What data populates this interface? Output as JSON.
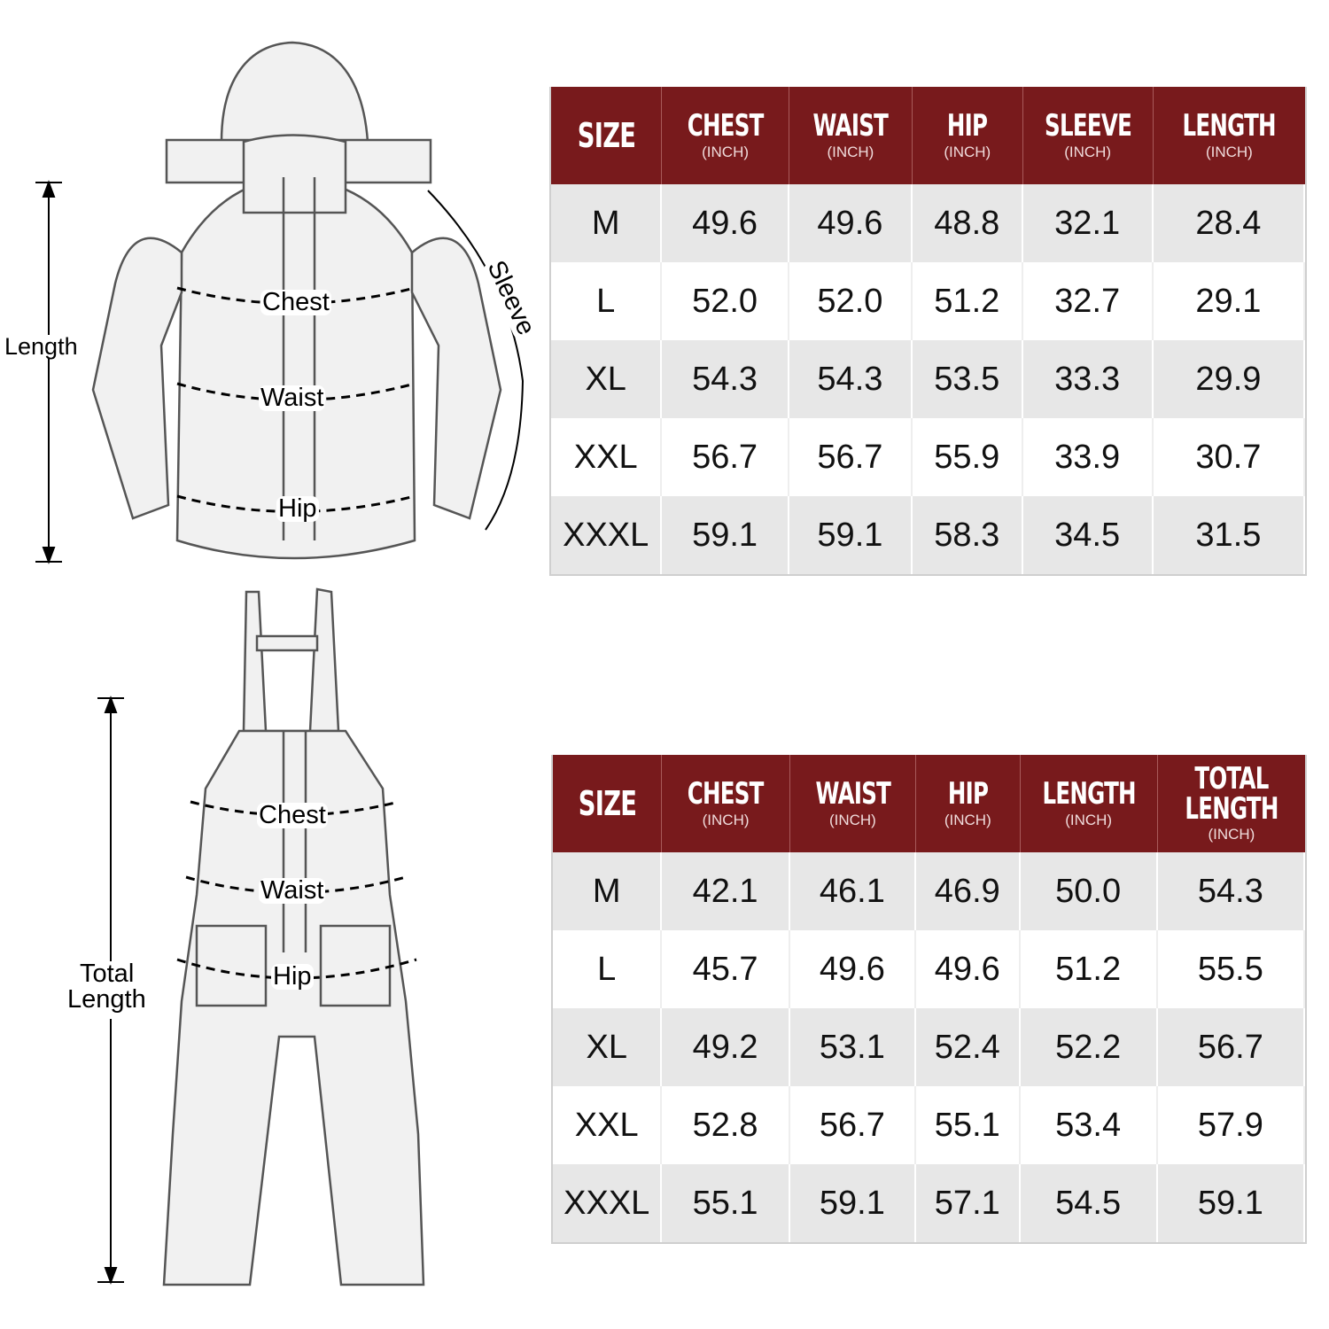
{
  "colors": {
    "header": "#781a1c",
    "row_alt": "#e7e7e7",
    "text": "#111111"
  },
  "jacket": {
    "labels": {
      "length": "Length",
      "sleeve": "Sleeve",
      "chest": "Chest",
      "waist": "Waist",
      "hip": "Hip"
    },
    "table": {
      "headers": [
        {
          "title": "SIZE",
          "unit": ""
        },
        {
          "title": "CHEST",
          "unit": "(INCH)"
        },
        {
          "title": "WAIST",
          "unit": "(INCH)"
        },
        {
          "title": "HIP",
          "unit": "(INCH)"
        },
        {
          "title": "SLEEVE",
          "unit": "(INCH)"
        },
        {
          "title": "LENGTH",
          "unit": "(INCH)"
        }
      ],
      "rows": [
        [
          "M",
          "49.6",
          "49.6",
          "48.8",
          "32.1",
          "28.4"
        ],
        [
          "L",
          "52.0",
          "52.0",
          "51.2",
          "32.7",
          "29.1"
        ],
        [
          "XL",
          "54.3",
          "54.3",
          "53.5",
          "33.3",
          "29.9"
        ],
        [
          "XXL",
          "56.7",
          "56.7",
          "55.9",
          "33.9",
          "30.7"
        ],
        [
          "XXXL",
          "59.1",
          "59.1",
          "58.3",
          "34.5",
          "31.5"
        ]
      ]
    }
  },
  "bib": {
    "labels": {
      "total_length_1": "Total",
      "total_length_2": "Length",
      "chest": "Chest",
      "waist": "Waist",
      "hip": "Hip"
    },
    "table": {
      "headers": [
        {
          "title": "SIZE",
          "unit": ""
        },
        {
          "title": "CHEST",
          "unit": "(INCH)"
        },
        {
          "title": "WAIST",
          "unit": "(INCH)"
        },
        {
          "title": "HIP",
          "unit": "(INCH)"
        },
        {
          "title": "LENGTH",
          "unit": "(INCH)"
        },
        {
          "title": "TOTAL LENGTH",
          "unit": "(INCH)"
        }
      ],
      "rows": [
        [
          "M",
          "42.1",
          "46.1",
          "46.9",
          "50.0",
          "54.3"
        ],
        [
          "L",
          "45.7",
          "49.6",
          "49.6",
          "51.2",
          "55.5"
        ],
        [
          "XL",
          "49.2",
          "53.1",
          "52.4",
          "52.2",
          "56.7"
        ],
        [
          "XXL",
          "52.8",
          "56.7",
          "55.1",
          "53.4",
          "57.9"
        ],
        [
          "XXXL",
          "55.1",
          "59.1",
          "57.1",
          "54.5",
          "59.1"
        ]
      ]
    }
  }
}
